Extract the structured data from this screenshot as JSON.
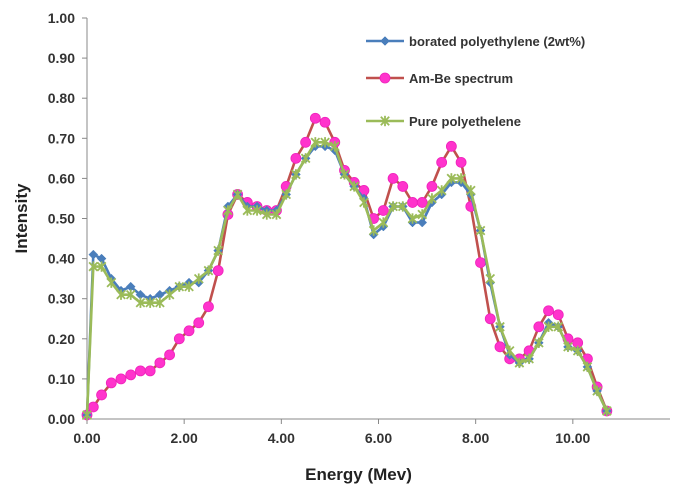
{
  "chart_data": {
    "type": "line",
    "xlabel": "Energy (Mev)",
    "ylabel": "Intensity",
    "xlim": [
      0,
      12
    ],
    "ylim": [
      0,
      1
    ],
    "xticks": [
      "0.00",
      "2.00",
      "4.00",
      "6.00",
      "8.00",
      "10.00"
    ],
    "yticks": [
      "0.00",
      "0.10",
      "0.20",
      "0.30",
      "0.40",
      "0.50",
      "0.60",
      "0.70",
      "0.80",
      "0.90",
      "1.00"
    ],
    "grid": false,
    "legend_position": "top-right",
    "series": [
      {
        "name": "borated polyethylene (2wt%)",
        "color": "#4a7ebb",
        "marker": "diamond",
        "x": [
          0,
          0.13,
          0.3,
          0.5,
          0.7,
          0.9,
          1.1,
          1.3,
          1.5,
          1.7,
          1.9,
          2.1,
          2.3,
          2.5,
          2.7,
          2.9,
          3.1,
          3.3,
          3.5,
          3.7,
          3.9,
          4.1,
          4.3,
          4.5,
          4.7,
          4.9,
          5.1,
          5.3,
          5.5,
          5.7,
          5.9,
          6.1,
          6.3,
          6.5,
          6.7,
          6.9,
          7.1,
          7.3,
          7.5,
          7.7,
          7.9,
          8.1,
          8.3,
          8.5,
          8.7,
          8.9,
          9.1,
          9.3,
          9.5,
          9.7,
          9.9,
          10.1,
          10.3,
          10.5,
          10.7
        ],
        "values": [
          0.01,
          0.41,
          0.4,
          0.35,
          0.32,
          0.33,
          0.31,
          0.3,
          0.31,
          0.32,
          0.33,
          0.34,
          0.34,
          0.37,
          0.42,
          0.53,
          0.56,
          0.53,
          0.53,
          0.52,
          0.52,
          0.56,
          0.61,
          0.65,
          0.68,
          0.68,
          0.67,
          0.61,
          0.58,
          0.55,
          0.46,
          0.48,
          0.53,
          0.53,
          0.49,
          0.49,
          0.54,
          0.56,
          0.59,
          0.59,
          0.56,
          0.47,
          0.34,
          0.23,
          0.16,
          0.14,
          0.15,
          0.19,
          0.24,
          0.23,
          0.18,
          0.17,
          0.13,
          0.07,
          0.02
        ]
      },
      {
        "name": "Am-Be spectrum",
        "color": "#c0504d",
        "marker": "circle",
        "x": [
          0,
          0.13,
          0.3,
          0.5,
          0.7,
          0.9,
          1.1,
          1.3,
          1.5,
          1.7,
          1.9,
          2.1,
          2.3,
          2.5,
          2.7,
          2.9,
          3.1,
          3.3,
          3.5,
          3.7,
          3.9,
          4.1,
          4.3,
          4.5,
          4.7,
          4.9,
          5.1,
          5.3,
          5.5,
          5.7,
          5.9,
          6.1,
          6.3,
          6.5,
          6.7,
          6.9,
          7.1,
          7.3,
          7.5,
          7.7,
          7.9,
          8.1,
          8.3,
          8.5,
          8.7,
          8.9,
          9.1,
          9.3,
          9.5,
          9.7,
          9.9,
          10.1,
          10.3,
          10.5,
          10.7
        ],
        "values": [
          0.01,
          0.03,
          0.06,
          0.09,
          0.1,
          0.11,
          0.12,
          0.12,
          0.14,
          0.16,
          0.2,
          0.22,
          0.24,
          0.28,
          0.37,
          0.51,
          0.56,
          0.54,
          0.53,
          0.52,
          0.52,
          0.58,
          0.65,
          0.69,
          0.75,
          0.74,
          0.69,
          0.62,
          0.59,
          0.57,
          0.5,
          0.52,
          0.6,
          0.58,
          0.54,
          0.54,
          0.58,
          0.64,
          0.68,
          0.64,
          0.53,
          0.39,
          0.25,
          0.18,
          0.15,
          0.15,
          0.17,
          0.23,
          0.27,
          0.26,
          0.2,
          0.19,
          0.15,
          0.08,
          0.02
        ]
      },
      {
        "name": "Pure polyethelene",
        "color": "#9bbb59",
        "marker": "star",
        "x": [
          0,
          0.13,
          0.3,
          0.5,
          0.7,
          0.9,
          1.1,
          1.3,
          1.5,
          1.7,
          1.9,
          2.1,
          2.3,
          2.5,
          2.7,
          2.9,
          3.1,
          3.3,
          3.5,
          3.7,
          3.9,
          4.1,
          4.3,
          4.5,
          4.7,
          4.9,
          5.1,
          5.3,
          5.5,
          5.7,
          5.9,
          6.1,
          6.3,
          6.5,
          6.7,
          6.9,
          7.1,
          7.3,
          7.5,
          7.7,
          7.9,
          8.1,
          8.3,
          8.5,
          8.7,
          8.9,
          9.1,
          9.3,
          9.5,
          9.7,
          9.9,
          10.1,
          10.3,
          10.5,
          10.7
        ],
        "values": [
          0.01,
          0.38,
          0.38,
          0.34,
          0.31,
          0.31,
          0.29,
          0.29,
          0.29,
          0.31,
          0.33,
          0.33,
          0.35,
          0.37,
          0.42,
          0.52,
          0.56,
          0.52,
          0.52,
          0.51,
          0.51,
          0.56,
          0.61,
          0.65,
          0.69,
          0.69,
          0.68,
          0.61,
          0.58,
          0.54,
          0.47,
          0.49,
          0.53,
          0.53,
          0.5,
          0.51,
          0.55,
          0.57,
          0.6,
          0.6,
          0.57,
          0.47,
          0.35,
          0.23,
          0.17,
          0.14,
          0.15,
          0.19,
          0.23,
          0.23,
          0.18,
          0.17,
          0.13,
          0.07,
          0.02
        ]
      }
    ]
  }
}
